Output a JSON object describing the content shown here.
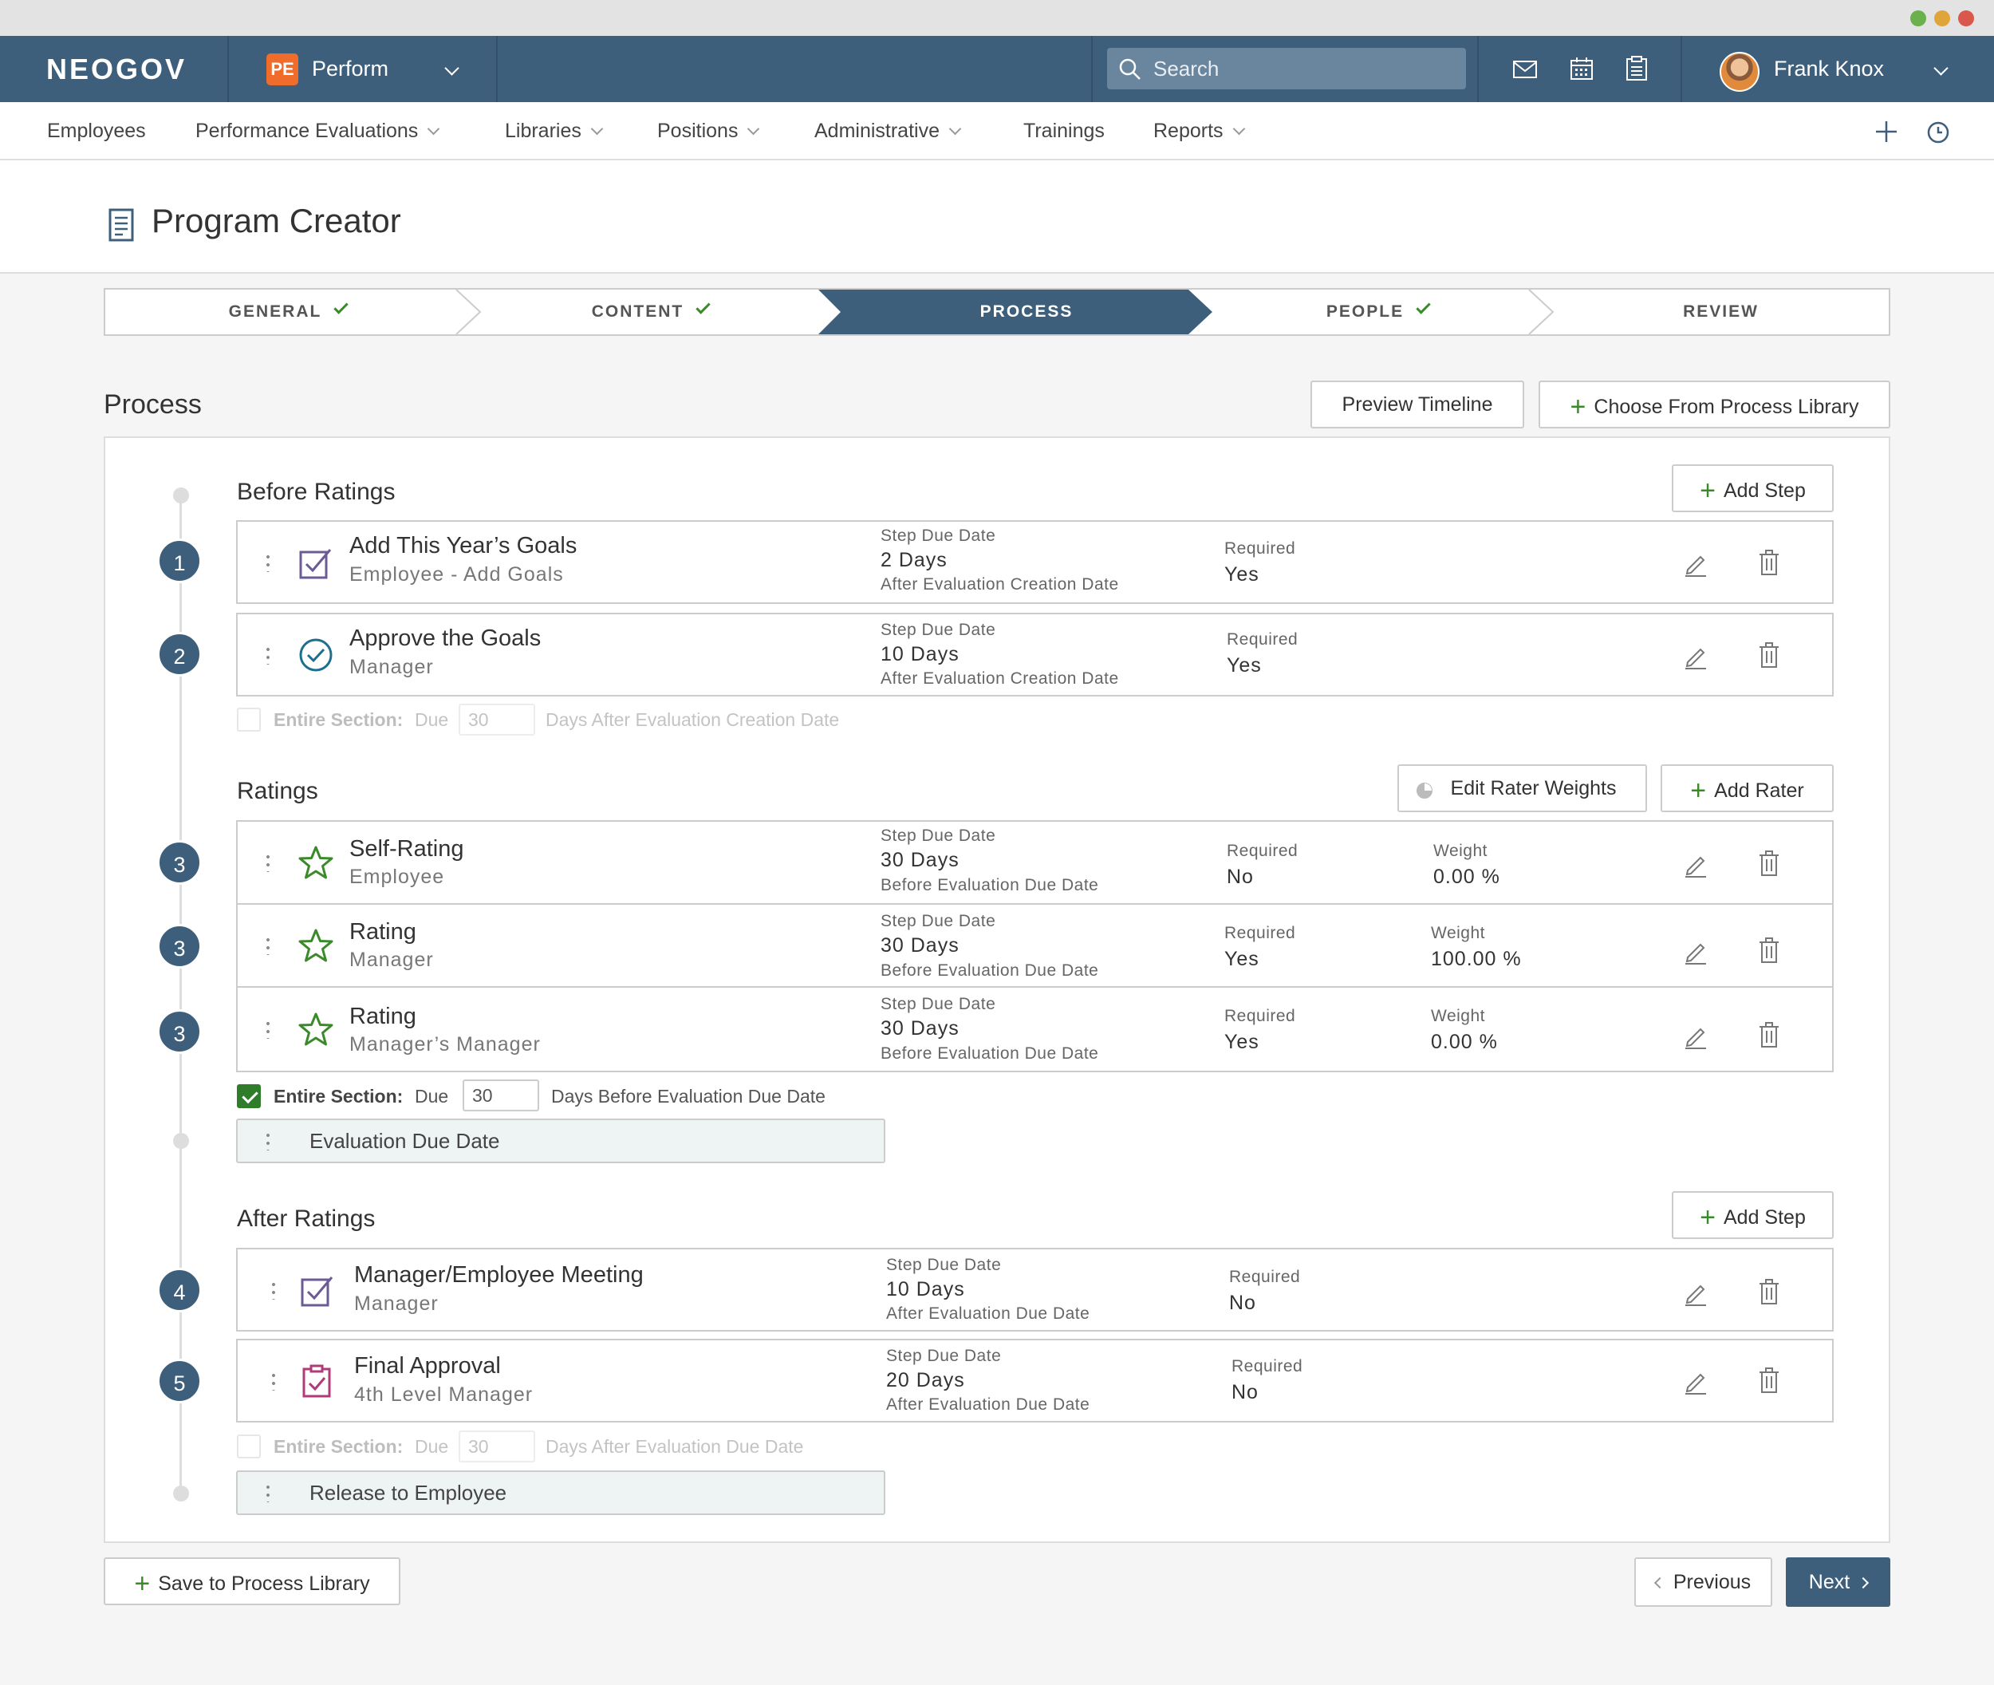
{
  "app": {
    "logo": "NEOGOV",
    "product_badge": "PE",
    "product_name": "Perform",
    "search_placeholder": "Search",
    "user_name": "Frank Knox"
  },
  "nav": {
    "items": [
      "Employees",
      "Performance Evaluations",
      "Libraries",
      "Positions",
      "Administrative",
      "Trainings",
      "Reports"
    ]
  },
  "page": {
    "title": "Program Creator"
  },
  "stepper": {
    "steps": [
      {
        "label": "GENERAL",
        "done": true
      },
      {
        "label": "CONTENT",
        "done": true
      },
      {
        "label": "PROCESS",
        "active": true
      },
      {
        "label": "PEOPLE",
        "done": true
      },
      {
        "label": "REVIEW",
        "done": false
      }
    ]
  },
  "process": {
    "heading": "Process",
    "preview_button": "Preview Timeline",
    "library_button": "Choose From Process Library",
    "add_step_label": "Add Step",
    "step_due_label": "Step Due Date",
    "required_label": "Required",
    "weight_label": "Weight",
    "entire_section_label": "Entire Section:",
    "due_label": "Due",
    "before_ratings": {
      "heading": "Before Ratings",
      "steps": [
        {
          "number": "1",
          "title": "Add This Year’s Goals",
          "subtitle": "Employee - Add Goals",
          "due": "2 Days",
          "due_ref": "After Evaluation Creation Date",
          "required": "Yes",
          "icon": "goal-checkbox-icon"
        },
        {
          "number": "2",
          "title": "Approve the Goals",
          "subtitle": "Manager",
          "due": "10 Days",
          "due_ref": "After Evaluation Creation Date",
          "required": "Yes",
          "icon": "approve-circle-icon"
        }
      ],
      "entire_section": {
        "checked": false,
        "value": "30",
        "after": "Days After Evaluation Creation Date"
      }
    },
    "ratings": {
      "heading": "Ratings",
      "edit_weights_button": "Edit Rater Weights",
      "add_rater_button": "Add Rater",
      "steps": [
        {
          "number": "3",
          "title": "Self-Rating",
          "subtitle": "Employee",
          "due": "30 Days",
          "due_ref": "Before Evaluation Due Date",
          "required": "No",
          "weight": "0.00 %",
          "icon": "star-icon"
        },
        {
          "number": "3",
          "title": "Rating",
          "subtitle": "Manager",
          "due": "30 Days",
          "due_ref": "Before Evaluation Due Date",
          "required": "Yes",
          "weight": "100.00 %",
          "icon": "star-icon"
        },
        {
          "number": "3",
          "title": "Rating",
          "subtitle": "Manager’s Manager",
          "due": "30 Days",
          "due_ref": "Before Evaluation Due Date",
          "required": "Yes",
          "weight": "0.00 %",
          "icon": "star-icon"
        }
      ],
      "entire_section": {
        "checked": true,
        "value": "30",
        "after": "Days Before Evaluation Due Date"
      },
      "milestone": "Evaluation Due Date"
    },
    "after_ratings": {
      "heading": "After Ratings",
      "steps": [
        {
          "number": "4",
          "title": "Manager/Employee Meeting",
          "subtitle": "Manager",
          "due": "10 Days",
          "due_ref": "After Evaluation Due Date",
          "required": "No",
          "icon": "meeting-checkbox-icon"
        },
        {
          "number": "5",
          "title": "Final Approval",
          "subtitle": "4th Level Manager",
          "due": "20 Days",
          "due_ref": "After Evaluation Due Date",
          "required": "No",
          "icon": "clipboard-check-icon"
        }
      ],
      "entire_section": {
        "checked": false,
        "value": "30",
        "after": "Days After Evaluation Due Date"
      },
      "milestone": "Release to Employee"
    }
  },
  "footer": {
    "save_library": "Save to Process Library",
    "previous": "Previous",
    "next": "Next"
  },
  "colors": {
    "header": "#3e5f7b",
    "accent_green": "#3a8a2a",
    "pe_badge": "#ef6c2b",
    "active_step": "#3e5f7b"
  }
}
